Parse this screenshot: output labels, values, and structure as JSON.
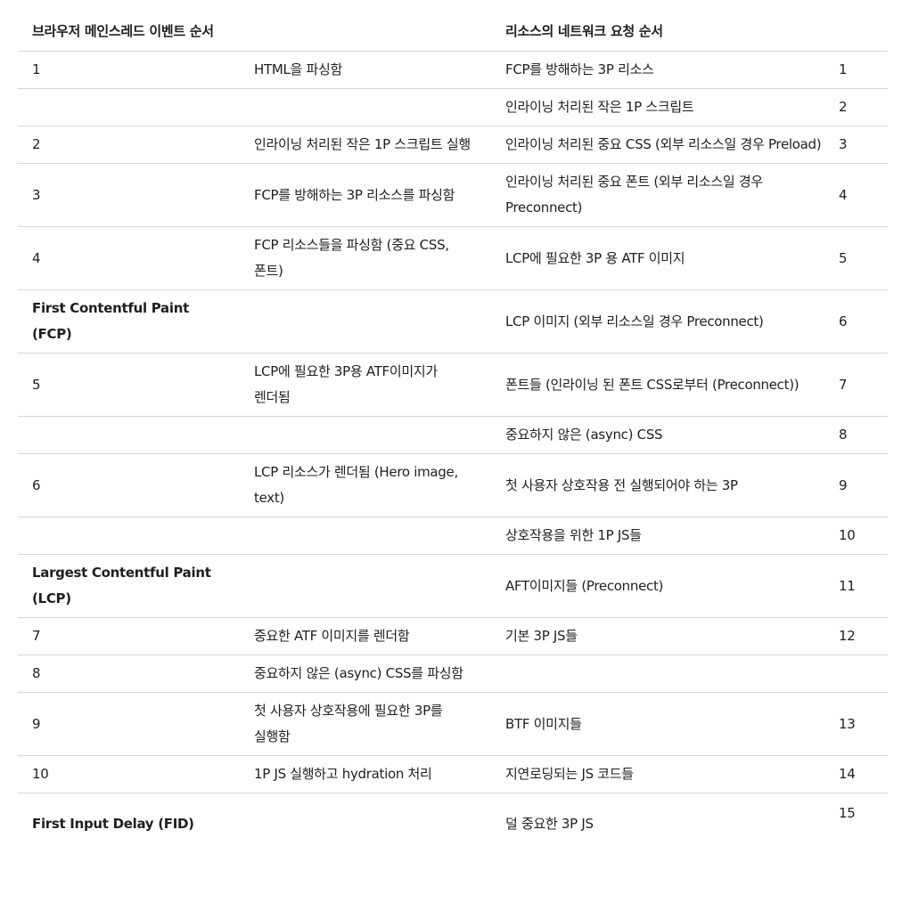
{
  "table": {
    "headers": [
      "브라우저 메인스레드 이벤트 순서",
      "",
      "리소스의 네트워크 요청 순서",
      ""
    ],
    "rows": [
      [
        "1",
        "HTML을 파싱함",
        "FCP를 방해하는 3P 리소스",
        "1"
      ],
      [
        "",
        "",
        "인라이닝 처리된 작은 1P 스크립트",
        "2"
      ],
      [
        "2",
        "인라이닝 처리된 작은 1P 스크립트 실행",
        "인라이닝 처리된 중요 CSS (외부 리소스일 경우 Preload)",
        "3"
      ],
      [
        "3",
        "FCP를 방해하는 3P 리소스를 파싱함",
        "인라이닝 처리된 중요 폰트 (외부 리소스일 경우 Preconnect)",
        "4"
      ],
      [
        "4",
        "FCP 리소스들을 파싱함 (중요 CSS, 폰트)",
        "LCP에 필요한 3P 용 ATF 이미지",
        "5"
      ],
      [
        "First Contentful Paint (FCP)",
        "",
        "LCP 이미지 (외부 리소스일 경우 Preconnect)",
        "6"
      ],
      [
        "5",
        "LCP에 필요한 3P용 ATF이미지가 렌더됨",
        "폰트들 (인라이닝 된 폰트 CSS로부터 (Preconnect))",
        "7"
      ],
      [
        "",
        "",
        "중요하지 않은 (async) CSS",
        "8"
      ],
      [
        "6",
        "LCP 리소스가 렌더됨 (Hero image, text)",
        "첫 사용자 상호작용 전 실행되어야 하는 3P",
        "9"
      ],
      [
        "",
        "",
        "상호작용을 위한 1P JS들",
        "10"
      ],
      [
        "Largest Contentful Paint (LCP)",
        "",
        "AFT이미지들 (Preconnect)",
        "11"
      ],
      [
        "7",
        "중요한 ATF 이미지를 렌더함",
        "기본 3P JS들",
        "12"
      ],
      [
        "8",
        "중요하지 않은 (async) CSS를 파싱함",
        "",
        ""
      ],
      [
        "9",
        "첫 사용자 상호작용에 필요한 3P를 실행함",
        "BTF 이미지들",
        "13"
      ],
      [
        "10",
        "1P JS 실행하고 hydration 처리",
        "지연로딩되는 JS 코드들",
        "14"
      ],
      [
        "First Input Delay (FID)",
        "",
        "덜 중요한 3P JS",
        "15"
      ]
    ]
  }
}
